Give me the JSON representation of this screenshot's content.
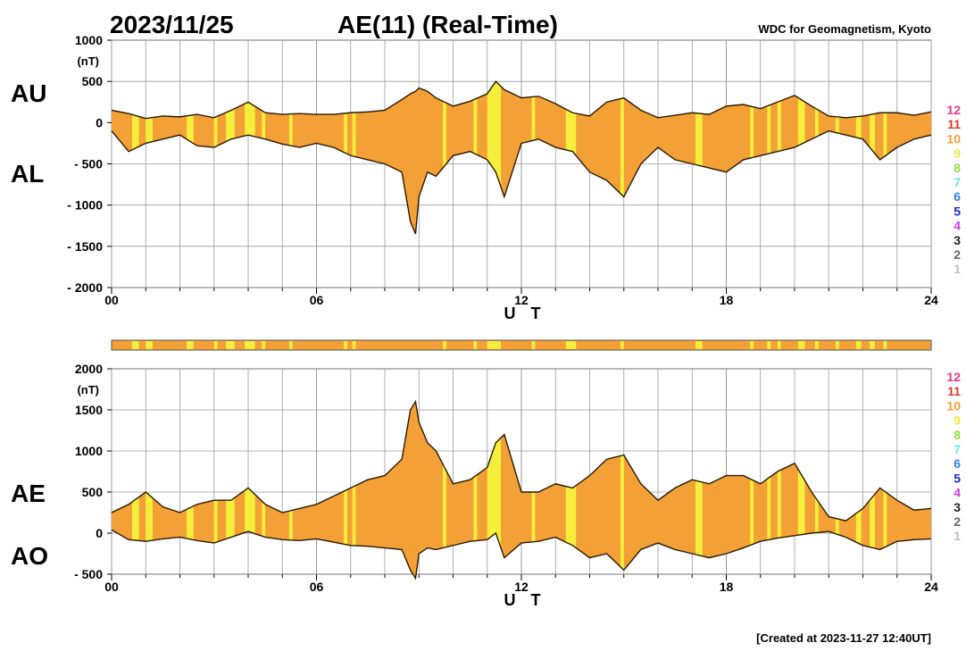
{
  "header": {
    "date": "2023/11/25",
    "title": "AE(11) (Real-Time)",
    "source": "WDC for Geomagnetism, Kyoto"
  },
  "footer": {
    "created": "[Created at 2023-11-27 12:40UT]"
  },
  "colors": {
    "fill": "#f3a037",
    "high_coverage": "#f5ef3c",
    "grid": "#9a9a9a",
    "line": "#2a1a05"
  },
  "level_legend": [
    {
      "label": "12",
      "color": "#e8388c"
    },
    {
      "label": "11",
      "color": "#d83a2a"
    },
    {
      "label": "10",
      "color": "#f0a030"
    },
    {
      "label": "9",
      "color": "#f2e640"
    },
    {
      "label": "8",
      "color": "#8ee040"
    },
    {
      "label": "7",
      "color": "#6ae6e6"
    },
    {
      "label": "6",
      "color": "#2f7fe6"
    },
    {
      "label": "5",
      "color": "#1a2ad0"
    },
    {
      "label": "4",
      "color": "#d040e0"
    },
    {
      "label": "3",
      "color": "#202020"
    },
    {
      "label": "2",
      "color": "#666666"
    },
    {
      "label": "1",
      "color": "#bdbdbd"
    }
  ],
  "chart_data": [
    {
      "type": "area",
      "panel": "AU/AL",
      "upper_label": "AU",
      "lower_label": "AL",
      "unit": "(nT)",
      "xlabel": "U T",
      "xticks": [
        "00",
        "06",
        "12",
        "18",
        "24"
      ],
      "xlim": [
        0,
        24
      ],
      "ylim": [
        -2000,
        1000
      ],
      "yticks": [
        1000,
        500,
        0,
        -500,
        -1000,
        -1500,
        -2000
      ],
      "ytick_labels": [
        "1000",
        "500",
        "0",
        "- 500",
        "- 1000",
        "- 1500",
        "- 2000"
      ],
      "grid": true,
      "x": [
        0,
        0.5,
        1,
        1.5,
        2,
        2.5,
        3,
        3.5,
        4,
        4.5,
        5,
        5.5,
        6,
        6.5,
        7,
        7.5,
        8,
        8.5,
        8.75,
        8.9,
        9,
        9.25,
        9.5,
        10,
        10.5,
        11,
        11.25,
        11.5,
        12,
        12.5,
        13,
        13.5,
        14,
        14.5,
        15,
        15.5,
        16,
        16.5,
        17,
        17.5,
        18,
        18.5,
        19,
        19.5,
        20,
        20.5,
        21,
        21.5,
        22,
        22.5,
        23,
        23.5,
        24
      ],
      "series": [
        {
          "name": "AU",
          "values": [
            150,
            110,
            50,
            80,
            70,
            100,
            60,
            150,
            250,
            120,
            100,
            110,
            100,
            100,
            120,
            130,
            150,
            280,
            350,
            380,
            420,
            380,
            300,
            200,
            260,
            350,
            500,
            400,
            300,
            320,
            230,
            120,
            80,
            250,
            300,
            150,
            60,
            90,
            120,
            100,
            200,
            220,
            170,
            250,
            330,
            200,
            80,
            60,
            80,
            120,
            120,
            90,
            130
          ]
        },
        {
          "name": "AL",
          "values": [
            -100,
            -350,
            -250,
            -200,
            -150,
            -280,
            -300,
            -200,
            -150,
            -200,
            -260,
            -300,
            -250,
            -300,
            -400,
            -450,
            -500,
            -600,
            -1200,
            -1350,
            -900,
            -600,
            -650,
            -400,
            -350,
            -450,
            -600,
            -900,
            -250,
            -200,
            -300,
            -350,
            -600,
            -700,
            -900,
            -500,
            -300,
            -450,
            -500,
            -550,
            -600,
            -450,
            -400,
            -350,
            -300,
            -200,
            -100,
            -150,
            -200,
            -450,
            -300,
            -200,
            -150
          ]
        }
      ]
    },
    {
      "type": "bar",
      "panel": "coverage strip",
      "xlim": [
        0,
        24
      ]
    },
    {
      "type": "area",
      "panel": "AE/AO",
      "upper_label": "AE",
      "lower_label": "AO",
      "unit": "(nT)",
      "xlabel": "U T",
      "xticks": [
        "00",
        "06",
        "12",
        "18",
        "24"
      ],
      "xlim": [
        0,
        24
      ],
      "ylim": [
        -500,
        2000
      ],
      "yticks": [
        2000,
        1500,
        1000,
        500,
        0,
        -500
      ],
      "ytick_labels": [
        "2000",
        "1500",
        "1000",
        "500",
        "0",
        "- 500"
      ],
      "grid": true,
      "x": [
        0,
        0.5,
        1,
        1.5,
        2,
        2.5,
        3,
        3.5,
        4,
        4.5,
        5,
        5.5,
        6,
        6.5,
        7,
        7.5,
        8,
        8.5,
        8.75,
        8.9,
        9,
        9.25,
        9.5,
        10,
        10.5,
        11,
        11.25,
        11.5,
        12,
        12.5,
        13,
        13.5,
        14,
        14.5,
        15,
        15.5,
        16,
        16.5,
        17,
        17.5,
        18,
        18.5,
        19,
        19.5,
        20,
        20.5,
        21,
        21.5,
        22,
        22.5,
        23,
        23.5,
        24
      ],
      "series": [
        {
          "name": "AE",
          "values": [
            250,
            350,
            500,
            320,
            250,
            350,
            400,
            400,
            550,
            350,
            250,
            300,
            350,
            450,
            550,
            650,
            700,
            900,
            1500,
            1600,
            1350,
            1100,
            1000,
            600,
            650,
            800,
            1100,
            1200,
            500,
            500,
            600,
            550,
            700,
            900,
            950,
            600,
            400,
            550,
            650,
            600,
            700,
            700,
            600,
            750,
            850,
            500,
            200,
            150,
            300,
            550,
            400,
            280,
            300
          ]
        },
        {
          "name": "AO",
          "values": [
            40,
            -80,
            -100,
            -70,
            -50,
            -90,
            -120,
            -50,
            20,
            -50,
            -80,
            -90,
            -70,
            -110,
            -150,
            -160,
            -180,
            -200,
            -450,
            -550,
            -250,
            -180,
            -200,
            -150,
            -100,
            -80,
            0,
            -300,
            -120,
            -100,
            -50,
            -150,
            -300,
            -250,
            -450,
            -200,
            -120,
            -200,
            -250,
            -300,
            -250,
            -180,
            -100,
            -60,
            -30,
            0,
            20,
            -50,
            -150,
            -200,
            -100,
            -80,
            -70
          ]
        }
      ]
    }
  ]
}
